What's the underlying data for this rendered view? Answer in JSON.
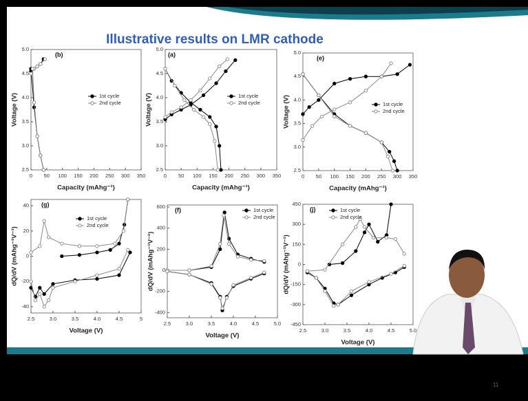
{
  "slide": {
    "title": "Illustrative results on LMR cathode",
    "page_number": "11"
  },
  "chart_data": [
    {
      "type": "line",
      "panel_label": "(b)",
      "x_label": "Capacity (mAhg⁻¹)",
      "y_label": "Voltage (V)",
      "xlim": [
        0,
        350
      ],
      "ylim": [
        2.5,
        5
      ],
      "xticks": [
        0,
        50,
        100,
        150,
        200,
        250,
        300,
        350
      ],
      "yticks": [
        2.5,
        {
          "value": 3,
          "label": "3.0"
        },
        3.5,
        {
          "value": 4,
          "label": "4.0"
        },
        4.5,
        {
          "value": 5,
          "label": "5.0"
        }
      ],
      "series": [
        {
          "name": "1st cycle",
          "color": "#000000",
          "marker": "filled",
          "x": [
            0,
            10,
            20,
            30,
            40,
            null,
            0,
            10,
            20,
            30,
            40
          ],
          "values": [
            4.55,
            4.6,
            4.65,
            4.7,
            4.8,
            null,
            4.6,
            3.8,
            3.2,
            2.8,
            2.5
          ]
        },
        {
          "name": "2nd cycle",
          "color": "#888888",
          "marker": "open",
          "x": [
            0,
            10,
            20,
            30,
            45,
            null,
            5,
            10,
            20,
            30,
            40
          ],
          "values": [
            4.5,
            4.6,
            4.65,
            4.7,
            4.8,
            null,
            4.6,
            3.9,
            3.2,
            2.8,
            2.5
          ]
        }
      ]
    },
    {
      "type": "line",
      "panel_label": "(a)",
      "x_label": "Capacity (mAhg⁻¹)",
      "y_label": "Voltage (V)",
      "xlim": [
        0,
        350
      ],
      "ylim": [
        2.5,
        5
      ],
      "xticks": [
        0,
        50,
        100,
        150,
        200,
        250,
        300,
        350
      ],
      "yticks": [
        2.5,
        {
          "value": 3,
          "label": "3.0"
        },
        3.5,
        {
          "value": 4,
          "label": "4.0"
        },
        4.5,
        {
          "value": 5,
          "label": "5.0"
        }
      ],
      "series": [
        {
          "name": "1st cycle",
          "color": "#000000",
          "marker": "filled",
          "x": [
            0,
            20,
            50,
            80,
            120,
            160,
            190,
            220,
            null,
            0,
            20,
            50,
            80,
            110,
            140,
            160,
            170,
            175
          ],
          "values": [
            3.55,
            3.65,
            3.75,
            3.85,
            4.05,
            4.3,
            4.55,
            4.78,
            null,
            4.6,
            4.35,
            4.1,
            3.9,
            3.75,
            3.6,
            3.4,
            3.0,
            2.5
          ]
        },
        {
          "name": "2nd cycle",
          "color": "#888888",
          "marker": "open",
          "x": [
            0,
            20,
            50,
            80,
            110,
            140,
            170,
            195,
            null,
            0,
            30,
            60,
            90,
            120,
            140,
            155,
            165
          ],
          "values": [
            3.6,
            3.7,
            3.8,
            3.95,
            4.15,
            4.4,
            4.65,
            4.8,
            null,
            4.6,
            4.25,
            3.95,
            3.75,
            3.6,
            3.45,
            3.1,
            2.5
          ]
        }
      ]
    },
    {
      "type": "line",
      "panel_label": "(e)",
      "x_label": "Capacity (mAhg⁻¹)",
      "y_label": "Voltage (V)",
      "xlim": [
        0,
        350
      ],
      "ylim": [
        2.5,
        5
      ],
      "xticks": [
        0,
        50,
        100,
        150,
        200,
        250,
        300,
        350
      ],
      "yticks": [
        2.5,
        {
          "value": 3,
          "label": "3.0"
        },
        3.5,
        {
          "value": 4,
          "label": "4.0"
        },
        4.5,
        {
          "value": 5,
          "label": "5.0"
        }
      ],
      "series": [
        {
          "name": "1st cycle",
          "color": "#000000",
          "marker": "filled",
          "x": [
            0,
            20,
            50,
            100,
            150,
            200,
            250,
            300,
            340,
            null,
            0,
            50,
            100,
            150,
            200,
            250,
            275,
            290,
            300
          ],
          "values": [
            3.7,
            3.85,
            4.0,
            4.35,
            4.45,
            4.5,
            4.5,
            4.55,
            4.75,
            null,
            4.55,
            4.1,
            3.7,
            3.45,
            3.3,
            3.1,
            2.9,
            2.7,
            2.5
          ]
        },
        {
          "name": "2nd cycle",
          "color": "#888888",
          "marker": "open",
          "x": [
            0,
            30,
            60,
            100,
            150,
            200,
            250,
            280,
            null,
            0,
            50,
            100,
            150,
            200,
            250,
            270,
            285
          ],
          "values": [
            3.15,
            3.45,
            3.65,
            3.8,
            3.95,
            4.2,
            4.5,
            4.78,
            null,
            4.55,
            4.1,
            3.65,
            3.45,
            3.3,
            3.1,
            2.8,
            2.5
          ]
        }
      ]
    },
    {
      "type": "line",
      "panel_label": "(g)",
      "x_label": "Voltage (V)",
      "y_label": "dQ/dV (mAhg⁻¹V⁻¹)",
      "xlim": [
        2.5,
        5
      ],
      "ylim": [
        -45,
        45
      ],
      "xticks": [
        2.5,
        {
          "value": 3,
          "label": "3.0"
        },
        3.5,
        {
          "value": 4,
          "label": "4.0"
        },
        4.5,
        5
      ],
      "yticks": [
        -40,
        -20,
        0,
        20,
        40
      ],
      "series": [
        {
          "name": "1st cycle",
          "color": "#000000",
          "marker": "filled",
          "x": [
            3.2,
            3.6,
            4.0,
            4.3,
            4.5,
            4.62,
            4.7,
            null,
            4.75,
            4.5,
            4.0,
            3.5,
            3.0,
            2.8,
            2.7,
            2.6,
            2.5
          ],
          "values": [
            0,
            1,
            3,
            5,
            10,
            25,
            45,
            null,
            3,
            -15,
            -18,
            -19,
            -22,
            -30,
            -25,
            -32,
            -25
          ]
        },
        {
          "name": "2nd cycle",
          "color": "#888888",
          "marker": "open",
          "x": [
            2.5,
            2.7,
            2.8,
            2.9,
            3.2,
            3.6,
            4.0,
            4.4,
            4.6,
            4.7,
            null,
            4.7,
            4.5,
            4.0,
            3.5,
            3.0,
            2.9,
            2.8,
            2.7,
            2.6,
            2.5
          ],
          "values": [
            3,
            8,
            28,
            15,
            10,
            8,
            8,
            10,
            20,
            45,
            null,
            5,
            -10,
            -15,
            -20,
            -25,
            -35,
            -40,
            -30,
            -35,
            -20
          ]
        }
      ]
    },
    {
      "type": "line",
      "panel_label": "(f)",
      "x_label": "Voltage (V)",
      "y_label": "dQ/dV (mAhg⁻¹V⁻¹)",
      "xlim": [
        2.5,
        5
      ],
      "ylim": [
        -450,
        620
      ],
      "xticks": [
        2.5,
        {
          "value": 3,
          "label": "3.0"
        },
        3.5,
        {
          "value": 4,
          "label": "4.0"
        },
        4.5,
        {
          "value": 5,
          "label": "5.0"
        }
      ],
      "yticks": [
        -400,
        -200,
        0,
        200,
        400,
        600
      ],
      "series": [
        {
          "name": "1st cycle",
          "color": "#000000",
          "marker": "filled",
          "x": [
            2.5,
            3.0,
            3.5,
            3.7,
            3.8,
            3.9,
            4.1,
            4.4,
            4.7,
            null,
            4.7,
            4.4,
            4.0,
            3.85,
            3.75,
            3.7,
            3.5,
            3.0,
            2.5
          ],
          "values": [
            0,
            0,
            30,
            200,
            550,
            300,
            150,
            110,
            80,
            null,
            -30,
            -80,
            -150,
            -250,
            -380,
            -250,
            -120,
            -40,
            -10
          ]
        },
        {
          "name": "2nd cycle",
          "color": "#888888",
          "marker": "open",
          "x": [
            2.5,
            3.0,
            3.5,
            3.7,
            3.78,
            3.9,
            4.1,
            4.4,
            4.7,
            null,
            4.7,
            4.4,
            4.0,
            3.85,
            3.75,
            3.7,
            3.5,
            3.0,
            2.5
          ],
          "values": [
            0,
            0,
            40,
            250,
            520,
            250,
            130,
            100,
            90,
            null,
            -20,
            -70,
            -140,
            -260,
            -360,
            -260,
            -130,
            -40,
            -10
          ]
        }
      ]
    },
    {
      "type": "line",
      "panel_label": "(j)",
      "x_label": "Voltage (V)",
      "y_label": "dQ/dV (mAhg⁻¹V⁻¹)",
      "xlim": [
        2.5,
        5
      ],
      "ylim": [
        -450,
        450
      ],
      "xticks": [
        2.5,
        {
          "value": 3,
          "label": "3.0"
        },
        3.5,
        {
          "value": 4,
          "label": "4.0"
        },
        4.5,
        {
          "value": 5,
          "label": "5.0"
        }
      ],
      "yticks": [
        -450,
        -300,
        -150,
        0,
        150,
        300,
        450
      ],
      "series": [
        {
          "name": "1st cycle",
          "color": "#000000",
          "marker": "filled",
          "x": [
            3.1,
            3.4,
            3.7,
            3.9,
            4.0,
            4.2,
            4.4,
            4.5,
            null,
            4.8,
            4.6,
            4.3,
            4.0,
            3.6,
            3.3,
            3.2,
            3.0,
            2.8,
            2.6
          ],
          "values": [
            0,
            10,
            100,
            240,
            300,
            170,
            220,
            450,
            null,
            -20,
            -60,
            -100,
            -150,
            -230,
            -300,
            -290,
            -180,
            -100,
            -60
          ]
        },
        {
          "name": "2nd cycle",
          "color": "#888888",
          "marker": "open",
          "x": [
            2.6,
            3.0,
            3.4,
            3.7,
            3.8,
            3.9,
            4.1,
            4.4,
            4.6,
            4.8,
            null,
            4.8,
            4.5,
            4.0,
            3.6,
            3.3,
            3.2,
            3.0,
            2.8,
            2.6
          ],
          "values": [
            -50,
            -40,
            150,
            280,
            340,
            280,
            200,
            200,
            190,
            80,
            null,
            -10,
            -70,
            -130,
            -200,
            -300,
            -310,
            -200,
            -100,
            -50
          ]
        }
      ]
    }
  ]
}
